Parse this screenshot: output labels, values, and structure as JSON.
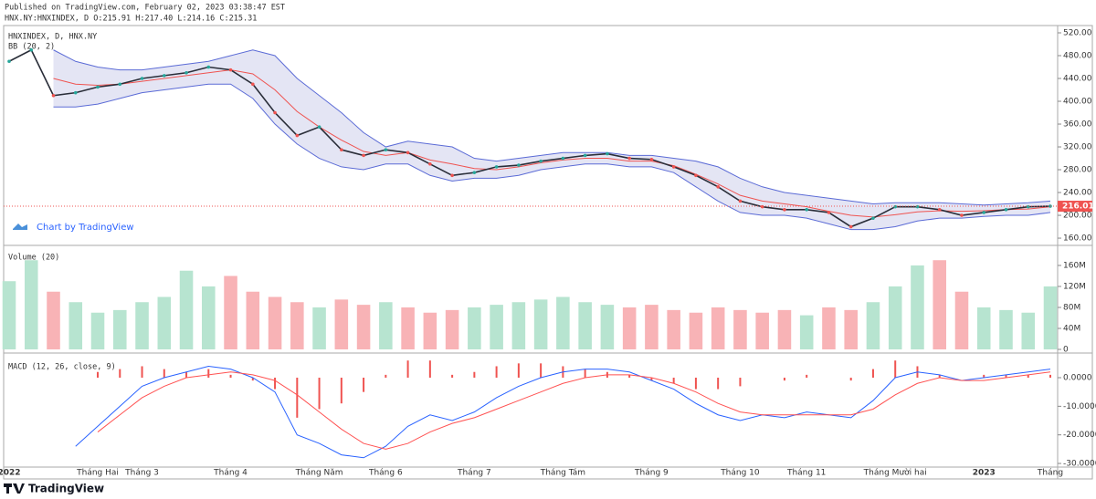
{
  "header": {
    "published": "Published on TradingView.com, February 02, 2023 03:38:47 EST",
    "symbol_line": "HNX.NY:HNXINDEX, D O:215.91 H:217.40 L:214.16 C:215.31"
  },
  "watermark": "Chart by TradingView",
  "logo": "TradingView",
  "chart_data": [
    {
      "type": "line",
      "title": "HNXINDEX, D, HNX.NY",
      "indicator": "BB (20, 2)",
      "categories": [
        "2022",
        null,
        null,
        null,
        "Tháng Hai",
        null,
        "Tháng 3",
        null,
        null,
        null,
        "Tháng 4",
        null,
        null,
        null,
        "Tháng Năm",
        null,
        null,
        "Tháng 6",
        null,
        null,
        null,
        "Tháng 7",
        null,
        null,
        null,
        "Tháng Tám",
        null,
        null,
        null,
        "Tháng 9",
        null,
        null,
        null,
        "Tháng 10",
        null,
        null,
        "Tháng 11",
        null,
        null,
        null,
        "Tháng Mười hai",
        null,
        null,
        null,
        "2023",
        null,
        null,
        "Tháng"
      ],
      "close": [
        470,
        490,
        410,
        415,
        425,
        430,
        440,
        445,
        450,
        460,
        455,
        430,
        380,
        340,
        355,
        315,
        305,
        315,
        310,
        290,
        270,
        275,
        285,
        288,
        295,
        300,
        305,
        308,
        300,
        298,
        285,
        270,
        250,
        225,
        215,
        210,
        210,
        205,
        180,
        195,
        215,
        215,
        210,
        200,
        205,
        210,
        215,
        216
      ],
      "bb_upper": [
        null,
        null,
        490,
        470,
        460,
        455,
        455,
        460,
        465,
        470,
        480,
        490,
        480,
        440,
        410,
        380,
        345,
        320,
        330,
        325,
        320,
        300,
        295,
        300,
        305,
        310,
        310,
        310,
        305,
        305,
        300,
        295,
        285,
        265,
        250,
        240,
        235,
        230,
        225,
        220,
        222,
        222,
        222,
        220,
        218,
        220,
        222,
        225
      ],
      "bb_lower": [
        null,
        null,
        390,
        390,
        395,
        405,
        415,
        420,
        425,
        430,
        430,
        405,
        360,
        325,
        300,
        285,
        280,
        290,
        290,
        270,
        260,
        265,
        265,
        270,
        280,
        285,
        290,
        290,
        285,
        285,
        275,
        250,
        225,
        205,
        200,
        200,
        195,
        185,
        175,
        175,
        180,
        190,
        195,
        195,
        198,
        200,
        200,
        205
      ],
      "bb_basis": [
        null,
        null,
        440,
        430,
        428,
        430,
        435,
        440,
        445,
        450,
        455,
        448,
        420,
        382,
        355,
        332,
        312,
        305,
        310,
        297,
        290,
        282,
        280,
        285,
        292,
        297,
        300,
        300,
        295,
        295,
        287,
        272,
        255,
        235,
        225,
        220,
        215,
        207,
        200,
        197,
        201,
        206,
        208,
        207,
        208,
        210,
        211,
        215
      ],
      "line_color": "#2a2e39",
      "band_color": "#5b6bd6",
      "band_fill": "rgba(120,123,200,0.2)",
      "basis_color": "#ef5350",
      "last_price": {
        "value": 216.01,
        "label": "216.01",
        "color": "#ef5350"
      },
      "ylim": [
        150,
        532
      ],
      "yticks": [
        {
          "value": 160,
          "label": "160.00"
        },
        {
          "value": 200,
          "label": "200.00"
        },
        {
          "value": 240,
          "label": "240.00"
        },
        {
          "value": 280,
          "label": "280.00"
        },
        {
          "value": 320,
          "label": "320.00"
        },
        {
          "value": 360,
          "label": "360.00"
        },
        {
          "value": 400,
          "label": "400.00"
        },
        {
          "value": 440,
          "label": "440.00"
        },
        {
          "value": 480,
          "label": "480.00"
        },
        {
          "value": 520,
          "label": "520.00"
        }
      ]
    },
    {
      "type": "bar",
      "title": "Volume (20)",
      "values": [
        130,
        170,
        110,
        90,
        70,
        75,
        90,
        100,
        150,
        120,
        140,
        110,
        100,
        90,
        80,
        95,
        85,
        90,
        80,
        70,
        75,
        80,
        85,
        90,
        95,
        100,
        90,
        85,
        80,
        85,
        75,
        70,
        80,
        75,
        70,
        75,
        65,
        80,
        75,
        90,
        120,
        160,
        170,
        110,
        80,
        75,
        70,
        120
      ],
      "up_color": "#b7e4d0",
      "down_color": "#f8b3b6",
      "ylim": [
        0,
        193
      ],
      "yticks": [
        0,
        {
          "value": 40,
          "label": "40M"
        },
        {
          "value": 80,
          "label": "80M"
        },
        {
          "value": 120,
          "label": "120M"
        },
        {
          "value": 160,
          "label": "160M"
        }
      ]
    },
    {
      "type": "line",
      "title": "MACD (12, 26, close, 9)",
      "series": [
        {
          "color": "#2962ff",
          "values": [
            null,
            null,
            null,
            -24,
            -17,
            -10,
            -3,
            0,
            2,
            4,
            3,
            0,
            -5,
            -20,
            -23,
            -27,
            -28,
            -24,
            -17,
            -13,
            -15,
            -12,
            -7,
            -3,
            0,
            2,
            3,
            3,
            2,
            -1,
            -4,
            -9,
            -13,
            -15,
            -13,
            -14,
            -12,
            -13,
            -14,
            -8,
            0,
            2,
            1,
            -1,
            0,
            1,
            2,
            3
          ]
        },
        {
          "color": "#ff5252",
          "values": [
            null,
            null,
            null,
            null,
            -19,
            -13,
            -7,
            -3,
            0,
            1,
            2,
            1,
            -1,
            -6,
            -12,
            -18,
            -23,
            -25,
            -23,
            -19,
            -16,
            -14,
            -11,
            -8,
            -5,
            -2,
            0,
            1,
            1,
            0,
            -2,
            -5,
            -9,
            -12,
            -13,
            -13,
            -13,
            -13,
            -13,
            -11,
            -6,
            -2,
            0,
            -1,
            -1,
            0,
            1,
            2
          ]
        }
      ],
      "histogram": {
        "color": "#ef5350",
        "values": [
          null,
          null,
          null,
          null,
          2,
          3,
          4,
          3,
          2,
          3,
          1,
          -1,
          -4,
          -14,
          -11,
          -9,
          -5,
          1,
          6,
          6,
          1,
          2,
          4,
          5,
          5,
          4,
          3,
          2,
          1,
          -1,
          -2,
          -4,
          -4,
          -3,
          0,
          -1,
          1,
          0,
          -1,
          3,
          6,
          4,
          1,
          0,
          1,
          1,
          1,
          1
        ]
      },
      "ylim": [
        -32,
        7.5
      ],
      "yticks": [
        {
          "value": 0,
          "label": "0.0000"
        },
        {
          "value": -10,
          "label": "-10.0000"
        },
        {
          "value": -20,
          "label": "-20.0000"
        },
        {
          "value": -30,
          "label": "-30.0000"
        }
      ]
    }
  ]
}
